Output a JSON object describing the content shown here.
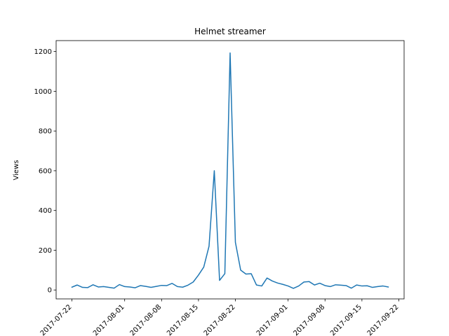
{
  "chart_data": {
    "type": "line",
    "title": "Helmet streamer",
    "xlabel": "",
    "ylabel": "Views",
    "x_ticks": [
      "2017-07-22",
      "2017-08-01",
      "2017-08-08",
      "2017-08-15",
      "2017-08-22",
      "2017-09-01",
      "2017-09-08",
      "2017-09-15",
      "2017-09-22"
    ],
    "y_ticks": [
      0,
      200,
      400,
      600,
      800,
      1000,
      1200
    ],
    "ylim": [
      -45,
      1255
    ],
    "xlim": [
      "2017-07-19",
      "2017-09-23"
    ],
    "grid": false,
    "legend": "none",
    "colors": {
      "line": "#1f77b4",
      "axes": "#000000",
      "background": "#ffffff"
    },
    "series": [
      {
        "x": [
          "2017-07-22",
          "2017-07-23",
          "2017-07-24",
          "2017-07-25",
          "2017-07-26",
          "2017-07-27",
          "2017-07-28",
          "2017-07-29",
          "2017-07-30",
          "2017-07-31",
          "2017-08-01",
          "2017-08-02",
          "2017-08-03",
          "2017-08-04",
          "2017-08-05",
          "2017-08-06",
          "2017-08-07",
          "2017-08-08",
          "2017-08-09",
          "2017-08-10",
          "2017-08-11",
          "2017-08-12",
          "2017-08-13",
          "2017-08-14",
          "2017-08-15",
          "2017-08-16",
          "2017-08-17",
          "2017-08-18",
          "2017-08-19",
          "2017-08-20",
          "2017-08-21",
          "2017-08-22",
          "2017-08-23",
          "2017-08-24",
          "2017-08-25",
          "2017-08-26",
          "2017-08-27",
          "2017-08-28",
          "2017-08-29",
          "2017-08-30",
          "2017-08-31",
          "2017-09-01",
          "2017-09-02",
          "2017-09-03",
          "2017-09-04",
          "2017-09-05",
          "2017-09-06",
          "2017-09-07",
          "2017-09-08",
          "2017-09-09",
          "2017-09-10",
          "2017-09-11",
          "2017-09-12",
          "2017-09-13",
          "2017-09-14",
          "2017-09-15",
          "2017-09-16",
          "2017-09-17",
          "2017-09-18",
          "2017-09-19",
          "2017-09-20",
          "2017-09-21"
        ],
        "values": [
          14,
          25,
          13,
          12,
          26,
          15,
          17,
          13,
          9,
          27,
          17,
          15,
          11,
          22,
          18,
          13,
          18,
          23,
          22,
          33,
          17,
          14,
          24,
          40,
          75,
          115,
          220,
          600,
          48,
          82,
          1193,
          240,
          100,
          80,
          82,
          25,
          20,
          60,
          45,
          35,
          28,
          20,
          8,
          20,
          40,
          42,
          25,
          34,
          22,
          17,
          26,
          24,
          22,
          9,
          25,
          20,
          21,
          13,
          17,
          20,
          15,
          null
        ]
      }
    ]
  }
}
